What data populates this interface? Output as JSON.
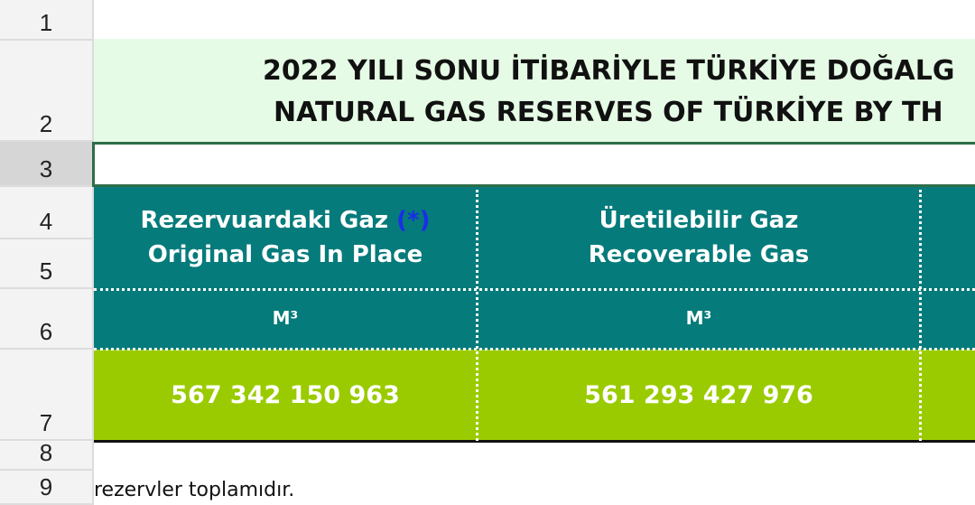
{
  "row_headers": [
    "1",
    "2",
    "3",
    "4",
    "5",
    "6",
    "7",
    "8",
    "9"
  ],
  "title": {
    "line1": "2022 YILI SONU İTİBARİYLE TÜRKİYE DOĞALG",
    "line2": "NATURAL GAS RESERVES OF TÜRKİYE BY TH"
  },
  "columns": [
    {
      "header_tr": "Rezervuardaki  Gaz",
      "footnote_mark": "(*)",
      "header_en": "Original Gas In Place",
      "unit": "M³",
      "value": "567 342 150 963"
    },
    {
      "header_tr": "Üretilebilir  Gaz",
      "header_en": "Recoverable Gas",
      "unit": "M³",
      "value": "561 293 427 976"
    }
  ],
  "footnote": "rezervler toplamıdır.",
  "colors": {
    "header_bg": "#067b7b",
    "value_bg": "#9acb00",
    "title_bg": "#e6fbe6",
    "footnote_mark": "#1a2ee8"
  }
}
